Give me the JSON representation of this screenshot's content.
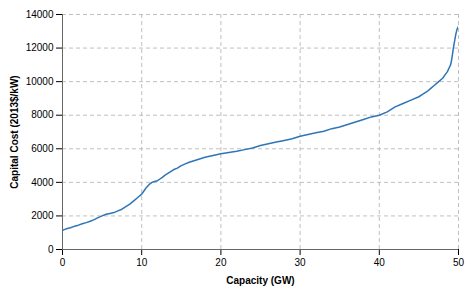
{
  "chart_data": {
    "type": "line",
    "xlabel": "Capacity (GW)",
    "ylabel": "Capital Cost (2013$/kW)",
    "x": [
      0.0,
      0.3,
      0.6,
      1.0,
      1.5,
      2.0,
      2.5,
      3.0,
      3.5,
      4.0,
      4.5,
      5.0,
      5.5,
      6.0,
      6.5,
      7.0,
      7.5,
      8.0,
      8.5,
      9.0,
      9.5,
      10.0,
      10.3,
      10.6,
      11.0,
      11.3,
      11.6,
      12.0,
      12.3,
      12.6,
      13.0,
      13.5,
      14.0,
      14.5,
      15.0,
      15.5,
      16.0,
      17.0,
      18.0,
      19.0,
      20.0,
      21.0,
      22.0,
      23.0,
      24.0,
      25.0,
      26.0,
      27.0,
      28.0,
      29.0,
      30.0,
      31.0,
      32.0,
      33.0,
      34.0,
      35.0,
      36.0,
      37.0,
      38.0,
      39.0,
      40.0,
      41.0,
      42.0,
      43.0,
      44.0,
      45.0,
      45.5,
      46.0,
      46.5,
      47.0,
      47.5,
      48.0,
      48.3,
      48.6,
      48.9,
      49.0,
      49.1,
      49.2,
      49.35,
      49.5,
      49.65,
      49.8,
      50.0
    ],
    "values": [
      1150,
      1200,
      1250,
      1300,
      1380,
      1450,
      1530,
      1600,
      1680,
      1780,
      1900,
      2000,
      2100,
      2150,
      2200,
      2300,
      2400,
      2550,
      2700,
      2900,
      3100,
      3300,
      3500,
      3700,
      3900,
      4000,
      4050,
      4100,
      4200,
      4300,
      4450,
      4600,
      4750,
      4850,
      5000,
      5100,
      5200,
      5350,
      5500,
      5600,
      5700,
      5780,
      5850,
      5950,
      6050,
      6200,
      6300,
      6400,
      6500,
      6600,
      6750,
      6850,
      6950,
      7050,
      7200,
      7300,
      7450,
      7600,
      7750,
      7900,
      8000,
      8200,
      8500,
      8700,
      8900,
      9100,
      9250,
      9400,
      9600,
      9800,
      10000,
      10200,
      10400,
      10600,
      10900,
      11000,
      11200,
      11500,
      12000,
      12400,
      12800,
      13100,
      13300
    ],
    "color": "#2E75B6",
    "xlim": [
      0,
      50
    ],
    "ylim": [
      0,
      14000
    ],
    "xticks": [
      0,
      10,
      20,
      30,
      40,
      50
    ],
    "yticks": [
      0,
      2000,
      4000,
      6000,
      8000,
      10000,
      12000,
      14000
    ],
    "grid": true
  }
}
